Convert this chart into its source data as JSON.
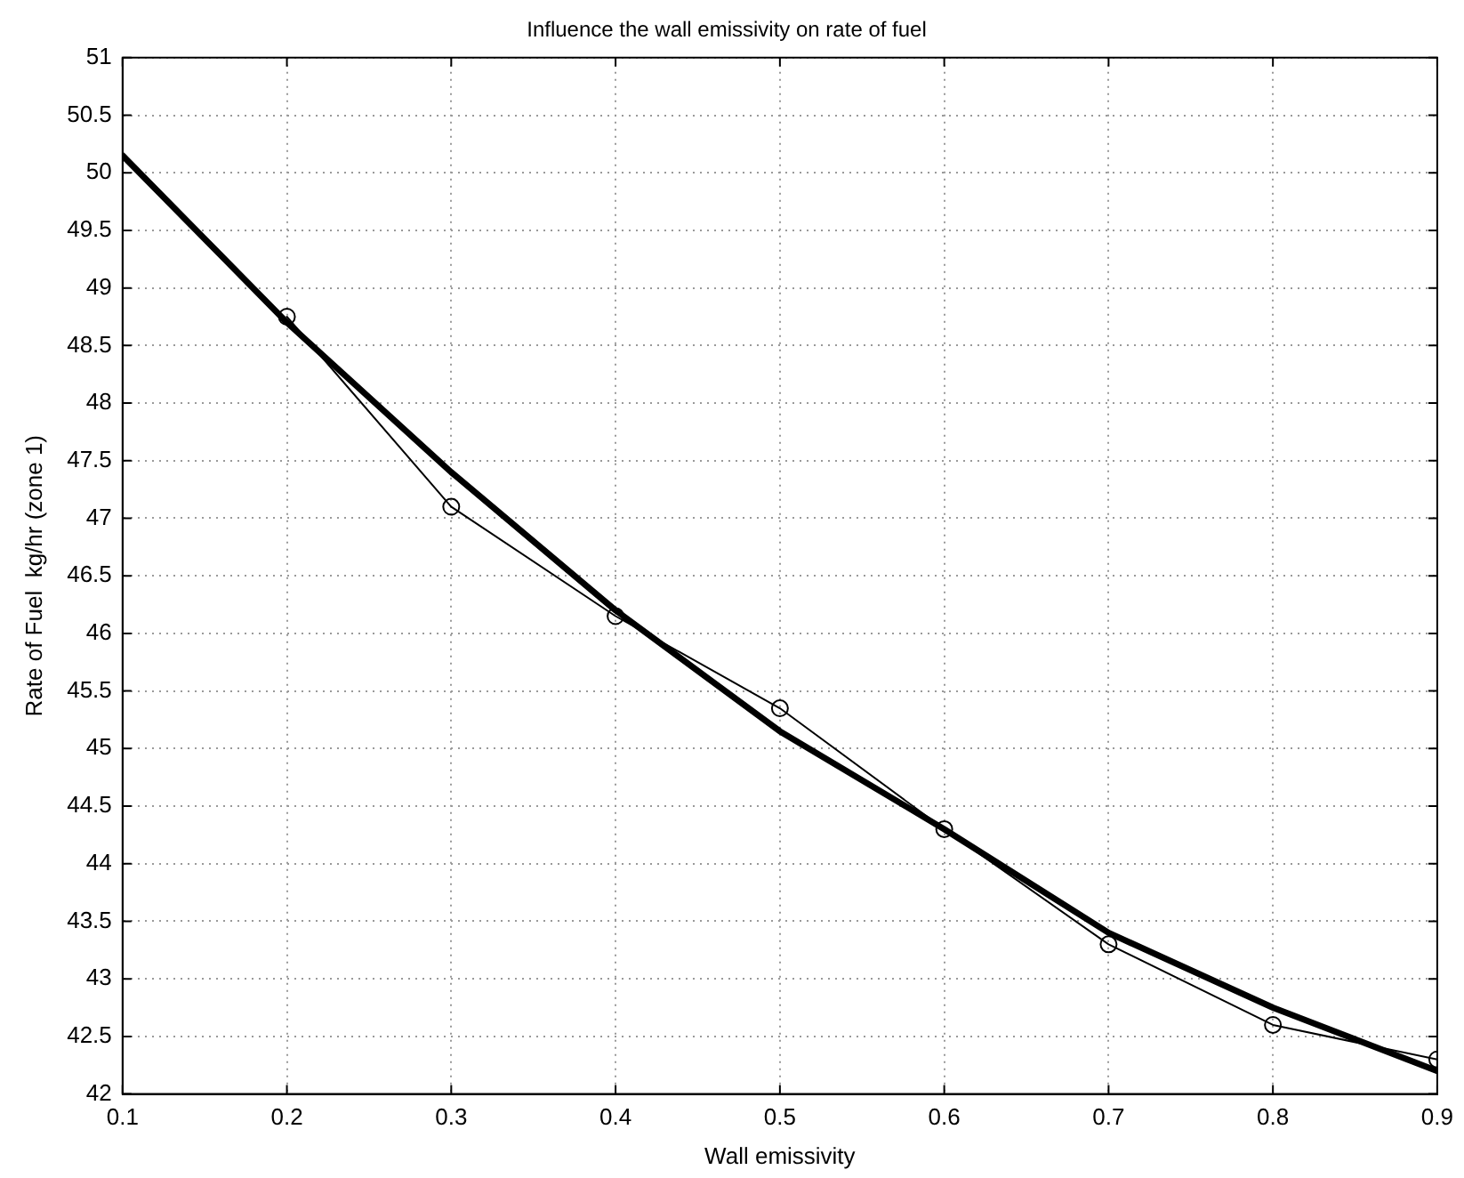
{
  "chart_data": {
    "type": "line",
    "title": "Influence the wall emissivity on rate of fuel",
    "xlabel": "Wall emissivity",
    "ylabel": "Rate of Fuel  kg/hr (zone 1)",
    "xlim": [
      0.1,
      0.9
    ],
    "xticks": [
      0.1,
      0.2,
      0.3,
      0.4,
      0.5,
      0.6,
      0.7,
      0.8,
      0.9
    ],
    "ylim": [
      42,
      51
    ],
    "yticks": [
      42,
      42.5,
      43,
      43.5,
      44,
      44.5,
      45,
      45.5,
      46,
      46.5,
      47,
      47.5,
      48,
      48.5,
      49,
      49.5,
      50,
      50.5,
      51
    ],
    "grid": true,
    "legend": false,
    "series": [
      {
        "type": "line",
        "color": "#000000",
        "marker": "circle",
        "x": [
          0.2,
          0.3,
          0.4,
          0.5,
          0.6,
          0.7,
          0.8,
          0.9
        ],
        "values": [
          48.75,
          47.1,
          46.15,
          45.35,
          44.3,
          43.3,
          42.6,
          42.3
        ]
      },
      {
        "type": "line",
        "color": "#000000",
        "marker": "none",
        "x": [
          0.1,
          0.2,
          0.3,
          0.4,
          0.5,
          0.6,
          0.7,
          0.8,
          0.9
        ],
        "values": [
          50.15,
          48.7,
          47.4,
          46.2,
          45.15,
          44.3,
          43.4,
          42.75,
          42.2
        ]
      }
    ]
  }
}
